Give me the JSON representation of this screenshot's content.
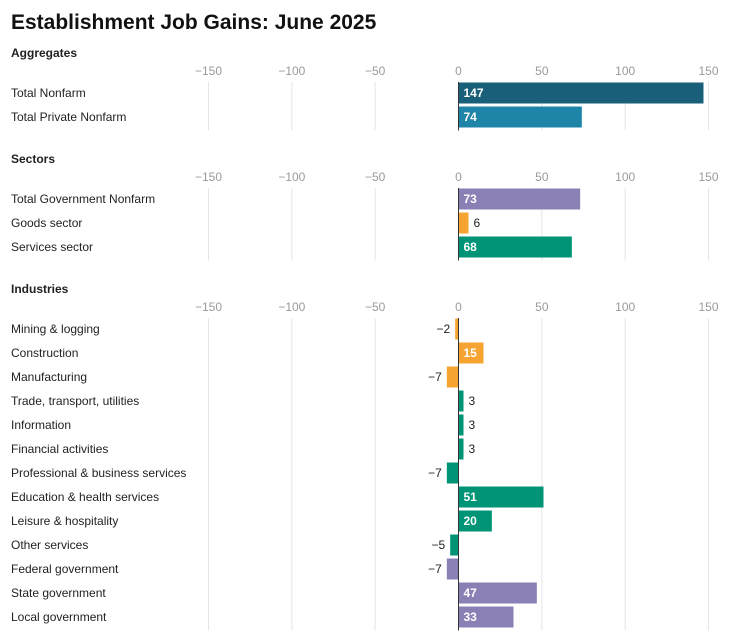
{
  "chart_data": {
    "type": "bar",
    "orientation": "horizontal",
    "title": "Establishment Job Gains: June 2025",
    "xlim": [
      -150,
      150
    ],
    "ticks": [
      -150,
      -100,
      -50,
      0,
      50,
      100,
      150
    ],
    "tick_labels": [
      "−150",
      "−100",
      "−50",
      "0",
      "50",
      "100",
      "150"
    ],
    "grid": true,
    "colors": {
      "total_nonfarm": "#1a5f7a",
      "private": "#1f85a8",
      "government": "#8b80b6",
      "goods": "#f5a431",
      "services": "#009477"
    },
    "panels": [
      {
        "name": "Aggregates",
        "bars": [
          {
            "label": "Total Nonfarm",
            "value": 147,
            "value_label": "147",
            "color": "#1a5f7a"
          },
          {
            "label": "Total Private Nonfarm",
            "value": 74,
            "value_label": "74",
            "color": "#1f85a8"
          }
        ]
      },
      {
        "name": "Sectors",
        "bars": [
          {
            "label": "Total Government Nonfarm",
            "value": 73,
            "value_label": "73",
            "color": "#8b80b6"
          },
          {
            "label": "Goods sector",
            "value": 6,
            "value_label": "6",
            "color": "#f5a431"
          },
          {
            "label": "Services sector",
            "value": 68,
            "value_label": "68",
            "color": "#009477"
          }
        ]
      },
      {
        "name": "Industries",
        "bars": [
          {
            "label": "Mining & logging",
            "value": -2,
            "value_label": "−2",
            "color": "#f5a431"
          },
          {
            "label": "Construction",
            "value": 15,
            "value_label": "15",
            "color": "#f5a431"
          },
          {
            "label": "Manufacturing",
            "value": -7,
            "value_label": "−7",
            "color": "#f5a431"
          },
          {
            "label": "Trade, transport, utilities",
            "value": 3,
            "value_label": "3",
            "color": "#009477"
          },
          {
            "label": "Information",
            "value": 3,
            "value_label": "3",
            "color": "#009477"
          },
          {
            "label": "Financial activities",
            "value": 3,
            "value_label": "3",
            "color": "#009477"
          },
          {
            "label": "Professional & business services",
            "value": -7,
            "value_label": "−7",
            "color": "#009477"
          },
          {
            "label": "Education & health services",
            "value": 51,
            "value_label": "51",
            "color": "#009477"
          },
          {
            "label": "Leisure & hospitality",
            "value": 20,
            "value_label": "20",
            "color": "#009477"
          },
          {
            "label": "Other services",
            "value": -5,
            "value_label": "−5",
            "color": "#009477"
          },
          {
            "label": "Federal government",
            "value": -7,
            "value_label": "−7",
            "color": "#8b80b6"
          },
          {
            "label": "State government",
            "value": 47,
            "value_label": "47",
            "color": "#8b80b6"
          },
          {
            "label": "Local government",
            "value": 33,
            "value_label": "33",
            "color": "#8b80b6"
          }
        ]
      }
    ]
  }
}
